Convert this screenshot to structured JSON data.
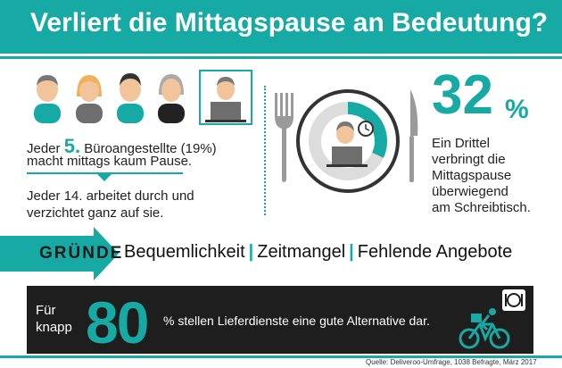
{
  "header": {
    "title": "Verliert die Mittagspause an Bedeutung?"
  },
  "left": {
    "line1_pre": "Jeder",
    "line1_num": "5.",
    "line1_post": "Büroangestellte (19%)",
    "line2": "macht mittags kaum Pause.",
    "line3": "Jeder 14. arbeitet durch und",
    "line4": "verzichtet ganz auf sie."
  },
  "right": {
    "stat": "32",
    "stat_unit": "%",
    "lines": [
      "Ein Drittel",
      "verbringt die",
      "Mittagspause",
      "überwiegend",
      "am Schreibtisch."
    ],
    "pie_fraction": 0.32
  },
  "reasons": {
    "label": "GRÜNDE",
    "items": [
      "Bequemlichkeit",
      "Zeitmangel",
      "Fehlende Angebote"
    ],
    "separator": "|"
  },
  "delivery": {
    "pre1": "Für",
    "pre2": "knapp",
    "stat": "80",
    "text": "% stellen Lieferdienste eine gute Alternative dar."
  },
  "source": "Quelle: Deliveroo-Umfrage, 1038 Befragte, März 2017",
  "colors": {
    "accent": "#17aaa4",
    "dark": "#1e1e1e",
    "skin": "#f2c49b",
    "grey": "#5a5a5a"
  }
}
